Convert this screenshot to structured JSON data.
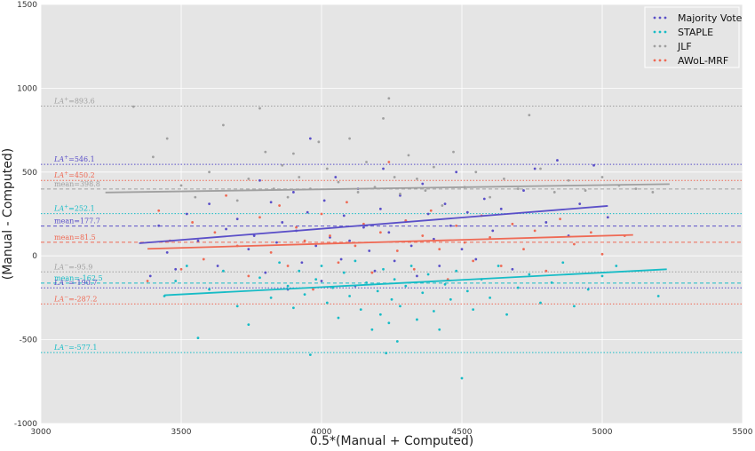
{
  "chart_data": {
    "type": "scatter",
    "xlabel": "0.5*(Manual + Computed)",
    "ylabel": "(Manual - Computed)",
    "xlim": [
      3000,
      5500
    ],
    "ylim": [
      -1000,
      1500
    ],
    "xticks": [
      "3000",
      "3500",
      "4000",
      "4500",
      "5000",
      "5500"
    ],
    "yticks": [
      "-1000",
      "-500",
      "0",
      "500",
      "1000",
      "1500"
    ],
    "grid": true,
    "legend_position": "top-right",
    "background": "#e5e5e5",
    "series": [
      {
        "name": "Majority Vote",
        "color": "#5a4fc8",
        "regression": {
          "x": [
            3350,
            5020
          ],
          "y": [
            75,
            298
          ]
        },
        "points": [
          [
            3390,
            -120
          ],
          [
            3420,
            180
          ],
          [
            3450,
            20
          ],
          [
            3480,
            -80
          ],
          [
            3520,
            250
          ],
          [
            3560,
            90
          ],
          [
            3600,
            310
          ],
          [
            3630,
            -60
          ],
          [
            3660,
            160
          ],
          [
            3700,
            220
          ],
          [
            3740,
            40
          ],
          [
            3760,
            120
          ],
          [
            3780,
            450
          ],
          [
            3800,
            -100
          ],
          [
            3820,
            320
          ],
          [
            3840,
            80
          ],
          [
            3860,
            200
          ],
          [
            3880,
            -200
          ],
          [
            3900,
            380
          ],
          [
            3910,
            150
          ],
          [
            3930,
            -40
          ],
          [
            3950,
            260
          ],
          [
            3960,
            700
          ],
          [
            3980,
            60
          ],
          [
            4000,
            -150
          ],
          [
            4010,
            330
          ],
          [
            4030,
            110
          ],
          [
            4050,
            470
          ],
          [
            4070,
            -20
          ],
          [
            4080,
            240
          ],
          [
            4100,
            90
          ],
          [
            4120,
            -180
          ],
          [
            4130,
            400
          ],
          [
            4150,
            170
          ],
          [
            4170,
            30
          ],
          [
            4190,
            -90
          ],
          [
            4210,
            280
          ],
          [
            4220,
            520
          ],
          [
            4240,
            140
          ],
          [
            4260,
            -30
          ],
          [
            4280,
            360
          ],
          [
            4300,
            210
          ],
          [
            4320,
            60
          ],
          [
            4340,
            -120
          ],
          [
            4360,
            430
          ],
          [
            4380,
            250
          ],
          [
            4400,
            100
          ],
          [
            4420,
            -60
          ],
          [
            4440,
            310
          ],
          [
            4460,
            180
          ],
          [
            4480,
            500
          ],
          [
            4500,
            40
          ],
          [
            4520,
            260
          ],
          [
            4550,
            -20
          ],
          [
            4580,
            340
          ],
          [
            4610,
            150
          ],
          [
            4640,
            280
          ],
          [
            4680,
            -80
          ],
          [
            4720,
            390
          ],
          [
            4760,
            520
          ],
          [
            4800,
            200
          ],
          [
            4840,
            570
          ],
          [
            4880,
            120
          ],
          [
            4920,
            310
          ],
          [
            4970,
            540
          ],
          [
            5020,
            230
          ]
        ]
      },
      {
        "name": "STAPLE",
        "color": "#17bcc6",
        "regression": {
          "x": [
            3440,
            5230
          ],
          "y": [
            -235,
            -80
          ]
        },
        "points": [
          [
            3440,
            -240
          ],
          [
            3480,
            -150
          ],
          [
            3520,
            -60
          ],
          [
            3560,
            -490
          ],
          [
            3600,
            -200
          ],
          [
            3650,
            -90
          ],
          [
            3700,
            -300
          ],
          [
            3740,
            -410
          ],
          [
            3780,
            -130
          ],
          [
            3820,
            -250
          ],
          [
            3850,
            -40
          ],
          [
            3880,
            -180
          ],
          [
            3900,
            -310
          ],
          [
            3920,
            -90
          ],
          [
            3940,
            -230
          ],
          [
            3960,
            -590
          ],
          [
            3980,
            -140
          ],
          [
            4000,
            -60
          ],
          [
            4020,
            -280
          ],
          [
            4040,
            -190
          ],
          [
            4060,
            -370
          ],
          [
            4080,
            -100
          ],
          [
            4100,
            -240
          ],
          [
            4120,
            -30
          ],
          [
            4140,
            -320
          ],
          [
            4160,
            -160
          ],
          [
            4180,
            -440
          ],
          [
            4200,
            -210
          ],
          [
            4210,
            -350
          ],
          [
            4220,
            -80
          ],
          [
            4230,
            -580
          ],
          [
            4240,
            -400
          ],
          [
            4250,
            -260
          ],
          [
            4260,
            -140
          ],
          [
            4270,
            -510
          ],
          [
            4280,
            -300
          ],
          [
            4300,
            -180
          ],
          [
            4320,
            -60
          ],
          [
            4340,
            -380
          ],
          [
            4360,
            -220
          ],
          [
            4380,
            -110
          ],
          [
            4400,
            -330
          ],
          [
            4420,
            -440
          ],
          [
            4440,
            -170
          ],
          [
            4460,
            -260
          ],
          [
            4480,
            -90
          ],
          [
            4500,
            -730
          ],
          [
            4520,
            -210
          ],
          [
            4540,
            -320
          ],
          [
            4570,
            -140
          ],
          [
            4600,
            -250
          ],
          [
            4630,
            -60
          ],
          [
            4660,
            -350
          ],
          [
            4700,
            -190
          ],
          [
            4740,
            -110
          ],
          [
            4780,
            -280
          ],
          [
            4820,
            -160
          ],
          [
            4860,
            -40
          ],
          [
            4900,
            -300
          ],
          [
            4950,
            -200
          ],
          [
            5000,
            -120
          ],
          [
            5050,
            -60
          ],
          [
            5200,
            -240
          ]
        ]
      },
      {
        "name": "JLF",
        "color": "#a0a0a0",
        "regression": {
          "x": [
            3230,
            5240
          ],
          "y": [
            378,
            428
          ]
        },
        "points": [
          [
            3330,
            890
          ],
          [
            3400,
            590
          ],
          [
            3450,
            700
          ],
          [
            3500,
            420
          ],
          [
            3550,
            350
          ],
          [
            3600,
            500
          ],
          [
            3650,
            780
          ],
          [
            3700,
            330
          ],
          [
            3740,
            460
          ],
          [
            3780,
            880
          ],
          [
            3800,
            620
          ],
          [
            3830,
            400
          ],
          [
            3860,
            540
          ],
          [
            3880,
            350
          ],
          [
            3900,
            610
          ],
          [
            3920,
            470
          ],
          [
            3960,
            400
          ],
          [
            3990,
            680
          ],
          [
            4020,
            520
          ],
          [
            4060,
            440
          ],
          [
            4100,
            700
          ],
          [
            4130,
            380
          ],
          [
            4160,
            560
          ],
          [
            4190,
            410
          ],
          [
            4220,
            820
          ],
          [
            4240,
            940
          ],
          [
            4260,
            470
          ],
          [
            4280,
            370
          ],
          [
            4310,
            600
          ],
          [
            4340,
            460
          ],
          [
            4370,
            390
          ],
          [
            4400,
            530
          ],
          [
            4430,
            300
          ],
          [
            4470,
            620
          ],
          [
            4510,
            410
          ],
          [
            4550,
            500
          ],
          [
            4600,
            350
          ],
          [
            4650,
            460
          ],
          [
            4700,
            400
          ],
          [
            4740,
            840
          ],
          [
            4780,
            520
          ],
          [
            4830,
            380
          ],
          [
            4880,
            450
          ],
          [
            4940,
            390
          ],
          [
            5000,
            470
          ],
          [
            5060,
            420
          ],
          [
            5120,
            400
          ],
          [
            5180,
            380
          ]
        ]
      },
      {
        "name": "AWoL-MRF",
        "color": "#ef6a55",
        "regression": {
          "x": [
            3380,
            5110
          ],
          "y": [
            42,
            125
          ]
        },
        "points": [
          [
            3380,
            -150
          ],
          [
            3420,
            270
          ],
          [
            3460,
            90
          ],
          [
            3500,
            -80
          ],
          [
            3540,
            200
          ],
          [
            3580,
            -20
          ],
          [
            3620,
            140
          ],
          [
            3660,
            360
          ],
          [
            3700,
            60
          ],
          [
            3740,
            -120
          ],
          [
            3780,
            230
          ],
          [
            3820,
            20
          ],
          [
            3850,
            300
          ],
          [
            3880,
            -60
          ],
          [
            3910,
            170
          ],
          [
            3940,
            90
          ],
          [
            3970,
            -200
          ],
          [
            4000,
            250
          ],
          [
            4030,
            120
          ],
          [
            4060,
            -40
          ],
          [
            4090,
            320
          ],
          [
            4120,
            60
          ],
          [
            4150,
            190
          ],
          [
            4180,
            -100
          ],
          [
            4210,
            140
          ],
          [
            4240,
            560
          ],
          [
            4270,
            30
          ],
          [
            4300,
            210
          ],
          [
            4330,
            -80
          ],
          [
            4360,
            120
          ],
          [
            4390,
            270
          ],
          [
            4420,
            40
          ],
          [
            4450,
            -140
          ],
          [
            4480,
            180
          ],
          [
            4510,
            80
          ],
          [
            4540,
            -30
          ],
          [
            4570,
            240
          ],
          [
            4600,
            110
          ],
          [
            4640,
            -60
          ],
          [
            4680,
            190
          ],
          [
            4720,
            40
          ],
          [
            4760,
            150
          ],
          [
            4800,
            -90
          ],
          [
            4850,
            220
          ],
          [
            4900,
            70
          ],
          [
            4960,
            140
          ],
          [
            5000,
            10
          ],
          [
            5080,
            120
          ]
        ]
      }
    ],
    "reference_lines": [
      {
        "label_prefix": "LA",
        "sup": "+",
        "text": "=893.6",
        "y": 893.6,
        "color": "#a0a0a0",
        "style": "dotted"
      },
      {
        "label_prefix": "LA",
        "sup": "+",
        "text": "=546.1",
        "y": 546.1,
        "color": "#5a4fc8",
        "style": "dotted"
      },
      {
        "label_prefix": "LA",
        "sup": "+",
        "text": "=450.2",
        "y": 450.2,
        "color": "#ef6a55",
        "style": "dotted"
      },
      {
        "label_prefix": "",
        "sup": "",
        "text": "mean=398.8",
        "y": 398.8,
        "color": "#a0a0a0",
        "style": "dashed"
      },
      {
        "label_prefix": "LA",
        "sup": "+",
        "text": "=252.1",
        "y": 252.1,
        "color": "#17bcc6",
        "style": "dotted"
      },
      {
        "label_prefix": "",
        "sup": "",
        "text": "mean=177.7",
        "y": 177.7,
        "color": "#5a4fc8",
        "style": "dashed"
      },
      {
        "label_prefix": "",
        "sup": "",
        "text": "mean=81.5",
        "y": 81.5,
        "color": "#ef6a55",
        "style": "dashed"
      },
      {
        "label_prefix": "LA",
        "sup": "−",
        "text": "=-95.9",
        "y": -95.9,
        "color": "#a0a0a0",
        "style": "dotted"
      },
      {
        "label_prefix": "",
        "sup": "",
        "text": "mean=-162.5",
        "y": -162.5,
        "color": "#17bcc6",
        "style": "dashed"
      },
      {
        "label_prefix": "LA",
        "sup": "−",
        "text": "=-190.7",
        "y": -190.7,
        "color": "#5a4fc8",
        "style": "dotted"
      },
      {
        "label_prefix": "LA",
        "sup": "−",
        "text": "=-287.2",
        "y": -287.2,
        "color": "#ef6a55",
        "style": "dotted"
      },
      {
        "label_prefix": "LA",
        "sup": "−",
        "text": "=-577.1",
        "y": -577.1,
        "color": "#17bcc6",
        "style": "dotted"
      }
    ]
  }
}
